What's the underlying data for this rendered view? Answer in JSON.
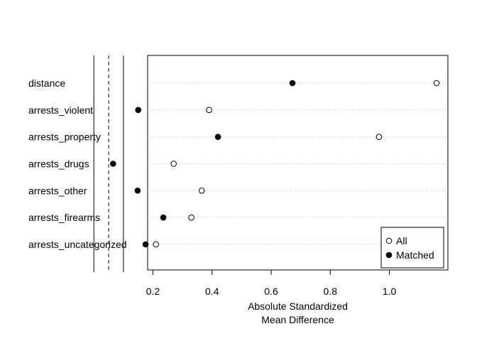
{
  "chart_data": {
    "type": "scatter",
    "title": "",
    "xlabel": "Absolute Standardized\nMean Difference",
    "ylabel": "",
    "xlim": [
      0.16,
      1.18
    ],
    "xticks": [
      0.2,
      0.4,
      0.6,
      0.8,
      1.0
    ],
    "xtick_labels": [
      "0.2",
      "0.4",
      "0.6",
      "0.8",
      "1.0"
    ],
    "categories": [
      "distance",
      "arrests_violent",
      "arrests_property",
      "arrests_drugs",
      "arrests_other",
      "arrests_firearms",
      "arrests_uncategorized"
    ],
    "series": [
      {
        "name": "All",
        "marker": "open-circle",
        "values": [
          1.16,
          0.39,
          0.965,
          0.27,
          0.365,
          0.33,
          0.21
        ]
      },
      {
        "name": "Matched",
        "marker": "filled-circle",
        "values": [
          0.672,
          0.15,
          0.42,
          0.065,
          0.148,
          0.235,
          0.175
        ]
      }
    ],
    "reference_lines": [
      {
        "x": 0.0,
        "style": "solid"
      },
      {
        "x": 0.05,
        "style": "dashed"
      },
      {
        "x": 0.1,
        "style": "solid"
      }
    ],
    "grid": "horizontal-dotted",
    "legend_position": "bottom-right"
  }
}
